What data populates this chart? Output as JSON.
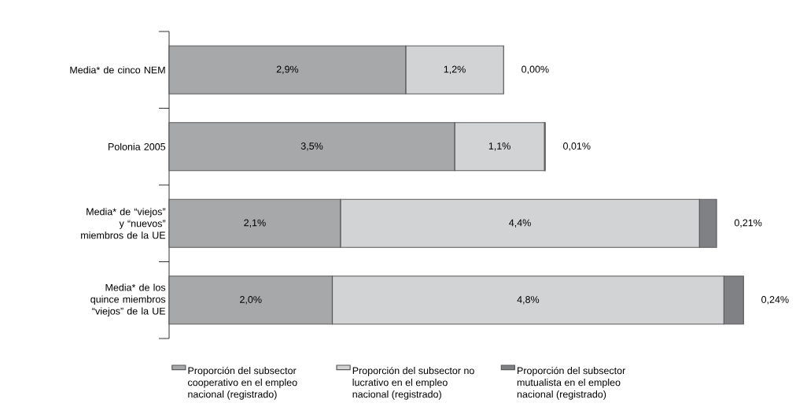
{
  "chart_data": {
    "type": "bar",
    "orientation": "horizontal",
    "stacked": true,
    "legend": "bottom",
    "categories": [
      "Media* de cinco NEM",
      "Polonia 2005",
      "Media* de “viejos” y “nuevos” miembros de la UE",
      "Media* de los quince miembros “viejos” de la UE"
    ],
    "series": [
      {
        "name": "Proporción del subsector cooperativo en el empleo nacional (registrado)",
        "color": "#a7a8aa",
        "values": [
          2.9,
          3.5,
          2.1,
          2.0
        ],
        "value_labels": [
          "2,9%",
          "3,5%",
          "2,1%",
          "2,0%"
        ]
      },
      {
        "name": "Proporción del subsector no lucrativo en el empleo nacional (registrado)",
        "color": "#d2d3d5",
        "values": [
          1.2,
          1.1,
          4.4,
          4.8
        ],
        "value_labels": [
          "1,2%",
          "1,1%",
          "4,4%",
          "4,8%"
        ]
      },
      {
        "name": "Proporción del subsector mutualista en el empleo nacional (registrado)",
        "color": "#808184",
        "values": [
          0.0,
          0.01,
          0.21,
          0.24
        ],
        "value_labels": [
          "0,00%",
          "0,01%",
          "0,21%",
          "0,24%"
        ]
      }
    ]
  }
}
